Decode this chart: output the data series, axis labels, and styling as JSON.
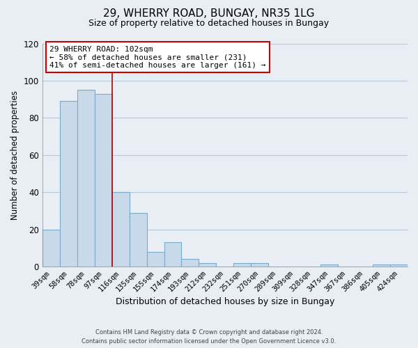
{
  "title": "29, WHERRY ROAD, BUNGAY, NR35 1LG",
  "subtitle": "Size of property relative to detached houses in Bungay",
  "xlabel": "Distribution of detached houses by size in Bungay",
  "ylabel": "Number of detached properties",
  "bar_color": "#c8daea",
  "bar_edge_color": "#7aaac8",
  "categories": [
    "39sqm",
    "58sqm",
    "78sqm",
    "97sqm",
    "116sqm",
    "135sqm",
    "155sqm",
    "174sqm",
    "193sqm",
    "212sqm",
    "232sqm",
    "251sqm",
    "270sqm",
    "289sqm",
    "309sqm",
    "328sqm",
    "347sqm",
    "367sqm",
    "386sqm",
    "405sqm",
    "424sqm"
  ],
  "values": [
    20,
    89,
    95,
    93,
    40,
    29,
    8,
    13,
    4,
    2,
    0,
    2,
    2,
    0,
    0,
    0,
    1,
    0,
    0,
    1,
    1
  ],
  "ylim": [
    0,
    120
  ],
  "yticks": [
    0,
    20,
    40,
    60,
    80,
    100,
    120
  ],
  "property_line_x": 3.5,
  "annotation_line1": "29 WHERRY ROAD: 102sqm",
  "annotation_line2": "← 58% of detached houses are smaller (231)",
  "annotation_line3": "41% of semi-detached houses are larger (161) →",
  "footer_line1": "Contains HM Land Registry data © Crown copyright and database right 2024.",
  "footer_line2": "Contains public sector information licensed under the Open Government Licence v3.0.",
  "bg_color": "#e8eef4",
  "plot_bg_color": "#e8eef4",
  "grid_color": "#b0c8dc"
}
